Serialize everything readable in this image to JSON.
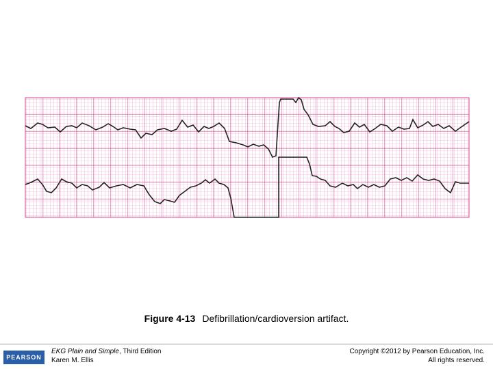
{
  "figure": {
    "label": "Figure 4-13",
    "caption": "Defibrillation/cardioversion artifact."
  },
  "footer": {
    "logo": "PEARSON",
    "book_title": "EKG Plain and Simple",
    "edition": ", Third Edition",
    "author": "Karen M. Ellis",
    "copyright": "Copyright ©2012 by Pearson Education, Inc.",
    "rights": "All rights reserved."
  }
}
